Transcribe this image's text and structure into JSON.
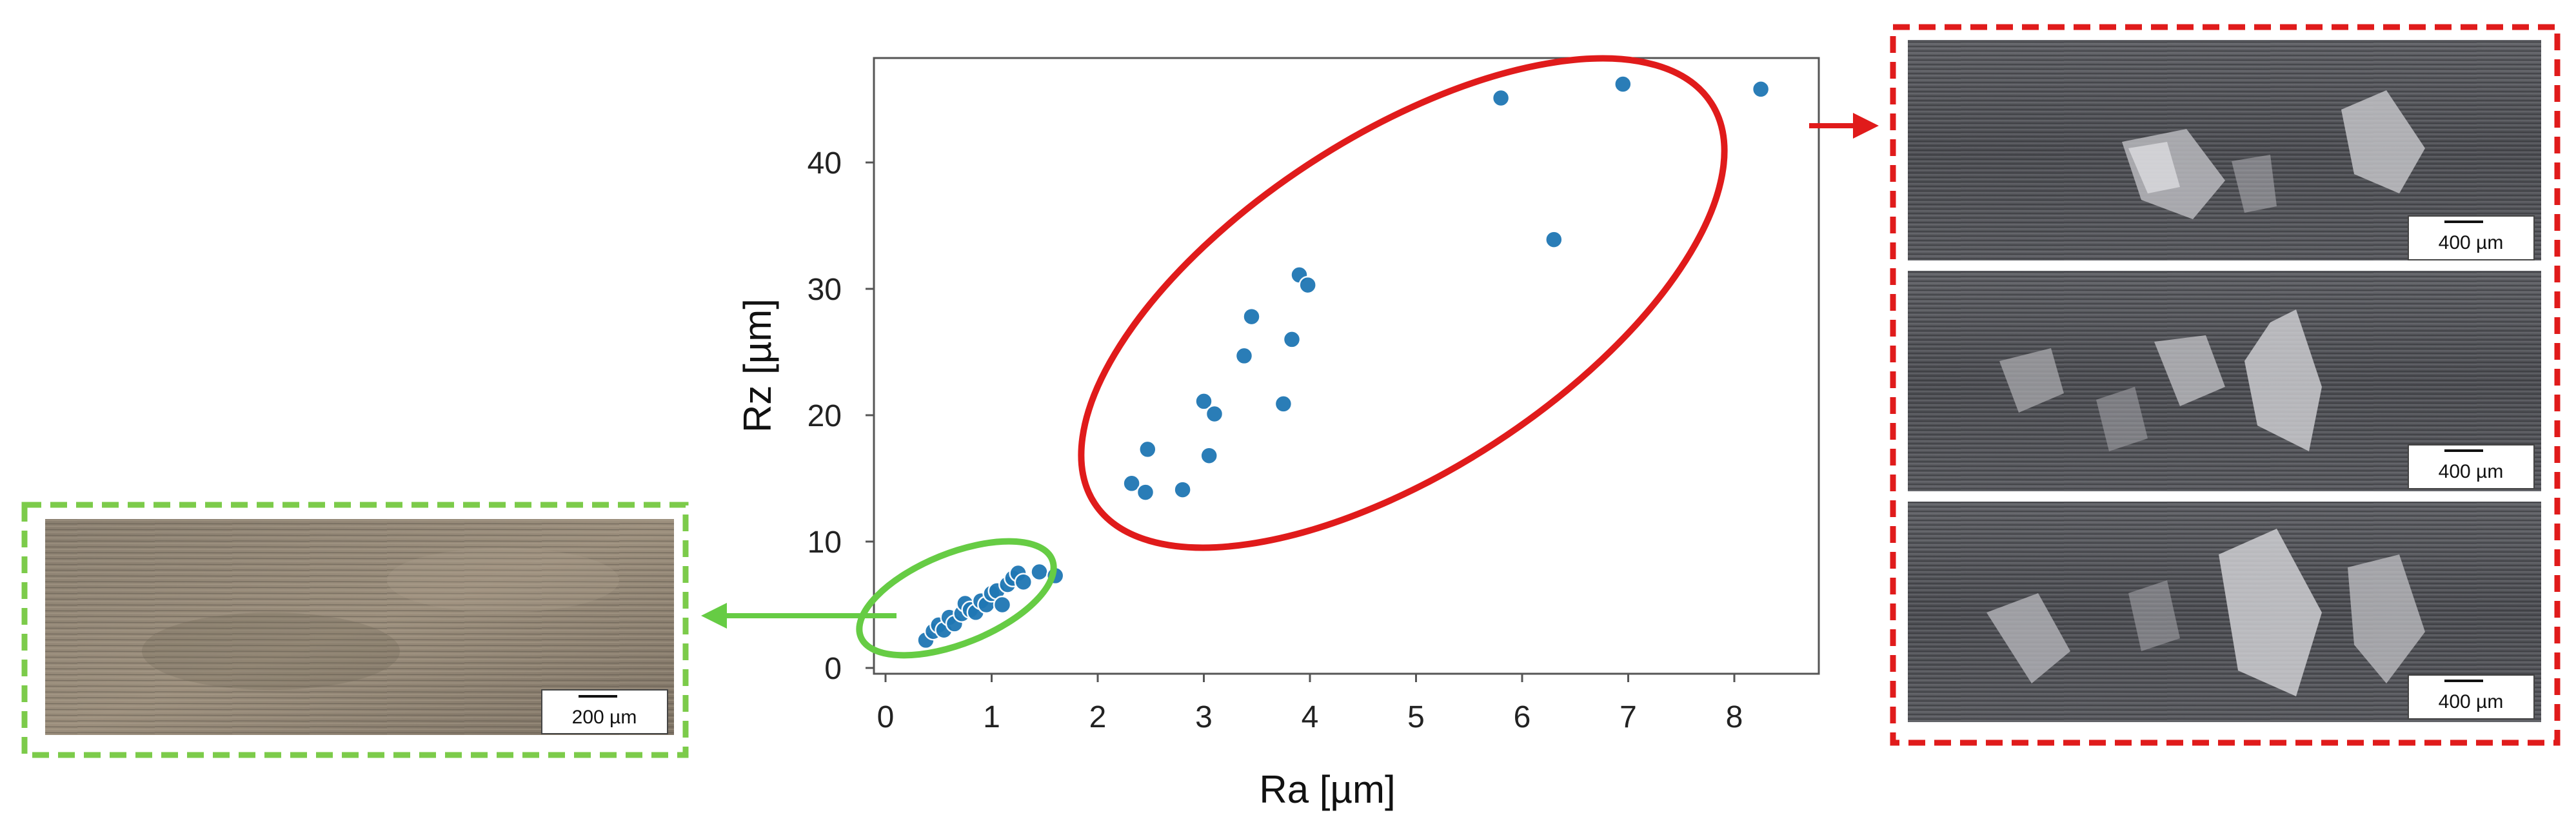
{
  "chart_data": {
    "type": "scatter",
    "xlabel": "Ra [µm]",
    "ylabel": "Rz [µm]",
    "xlim": [
      0,
      8.7
    ],
    "ylim": [
      0,
      48.5
    ],
    "xticks": [
      "0",
      "1",
      "2",
      "3",
      "4",
      "5",
      "6",
      "7",
      "8"
    ],
    "yticks": [
      "0",
      "10",
      "20",
      "30",
      "40"
    ],
    "grid": false,
    "legend": "none",
    "marker_color": "#1f77b4",
    "series": [
      {
        "points": [
          [
            0.38,
            2.2
          ],
          [
            0.45,
            2.9
          ],
          [
            0.5,
            3.4
          ],
          [
            0.55,
            3.0
          ],
          [
            0.6,
            4.0
          ],
          [
            0.65,
            3.5
          ],
          [
            0.72,
            4.3
          ],
          [
            0.75,
            5.1
          ],
          [
            0.8,
            4.6
          ],
          [
            0.85,
            4.4
          ],
          [
            0.9,
            5.3
          ],
          [
            0.95,
            5.0
          ],
          [
            1.0,
            5.9
          ],
          [
            1.05,
            6.1
          ],
          [
            1.1,
            5.0
          ],
          [
            1.15,
            6.6
          ],
          [
            1.2,
            7.1
          ],
          [
            1.25,
            7.5
          ],
          [
            1.3,
            6.8
          ],
          [
            1.45,
            7.6
          ],
          [
            1.6,
            7.3
          ],
          [
            2.32,
            14.6
          ],
          [
            2.45,
            13.9
          ],
          [
            2.47,
            17.3
          ],
          [
            2.8,
            14.1
          ],
          [
            3.0,
            21.1
          ],
          [
            3.05,
            16.8
          ],
          [
            3.1,
            20.1
          ],
          [
            3.38,
            24.7
          ],
          [
            3.45,
            27.8
          ],
          [
            3.75,
            20.9
          ],
          [
            3.83,
            26.0
          ],
          [
            3.9,
            31.1
          ],
          [
            3.98,
            30.3
          ],
          [
            5.8,
            45.1
          ],
          [
            6.3,
            33.9
          ],
          [
            6.95,
            46.2
          ],
          [
            8.25,
            45.8
          ]
        ]
      }
    ],
    "annotations": {
      "low_cluster_color": "#66cc44",
      "high_cluster_color": "#ee1111"
    }
  },
  "insets": {
    "left_scalebar": "200 µm",
    "right_scalebars": [
      "400 µm",
      "400 µm",
      "400 µm"
    ],
    "left_frame_color": "#7ccb4a",
    "right_frame_color": "#e01b1b"
  }
}
